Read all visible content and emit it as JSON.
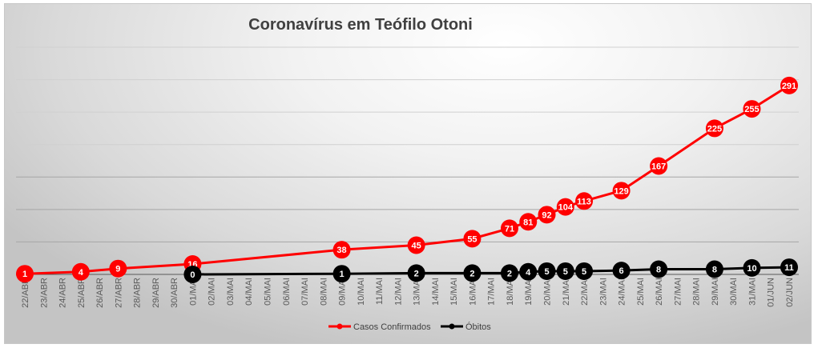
{
  "chart_data": {
    "type": "line",
    "title": "Coronavírus em Teófilo Otoni",
    "xlabel": "",
    "ylabel": "",
    "ylim": [
      0,
      350
    ],
    "y_gridlines": [
      0,
      50,
      100,
      150,
      200,
      250,
      300,
      350
    ],
    "grid": true,
    "legend_position": "bottom",
    "categories": [
      "22/ABR",
      "23/ABR",
      "24/ABR",
      "25/ABR",
      "26/ABR",
      "27/ABR",
      "28/ABR",
      "29/ABR",
      "30/ABR",
      "01/MAI",
      "02/MAI",
      "03/MAI",
      "04/MAI",
      "05/MAI",
      "06/MAI",
      "07/MAI",
      "08/MAI",
      "09/MAI",
      "10/MAI",
      "11/MAI",
      "12/MAI",
      "13/MAI",
      "14/MAI",
      "15/MAI",
      "16/MAI",
      "17/MAI",
      "18/MAI",
      "19/MAI",
      "20/MAI",
      "21/MAI",
      "22/MAI",
      "23/MAI",
      "24/MAI",
      "25/MAI",
      "26/MAI",
      "27/MAI",
      "28/MAI",
      "29/MAI",
      "30/MAI",
      "31/MAI",
      "01/JUN",
      "02/JUN"
    ],
    "series": [
      {
        "name": "Casos Confirmados",
        "color": "#ff0000",
        "points": [
          [
            "22/ABR",
            1
          ],
          [
            "25/ABR",
            4
          ],
          [
            "27/ABR",
            9
          ],
          [
            "01/MAI",
            16
          ],
          [
            "09/MAI",
            38
          ],
          [
            "13/MAI",
            45
          ],
          [
            "16/MAI",
            55
          ],
          [
            "18/MAI",
            71
          ],
          [
            "19/MAI",
            81
          ],
          [
            "20/MAI",
            92
          ],
          [
            "21/MAI",
            104
          ],
          [
            "22/MAI",
            113
          ],
          [
            "24/MAI",
            129
          ],
          [
            "26/MAI",
            167
          ],
          [
            "29/MAI",
            225
          ],
          [
            "31/MAI",
            255
          ],
          [
            "02/JUN",
            291
          ]
        ]
      },
      {
        "name": "Óbitos",
        "color": "#000000",
        "points": [
          [
            "01/MAI",
            0
          ],
          [
            "09/MAI",
            1
          ],
          [
            "13/MAI",
            2
          ],
          [
            "16/MAI",
            2
          ],
          [
            "18/MAI",
            2
          ],
          [
            "19/MAI",
            4
          ],
          [
            "20/MAI",
            5
          ],
          [
            "21/MAI",
            5
          ],
          [
            "22/MAI",
            5
          ],
          [
            "24/MAI",
            6
          ],
          [
            "26/MAI",
            8
          ],
          [
            "29/MAI",
            8
          ],
          [
            "31/MAI",
            10
          ],
          [
            "02/JUN",
            11
          ]
        ]
      }
    ]
  }
}
